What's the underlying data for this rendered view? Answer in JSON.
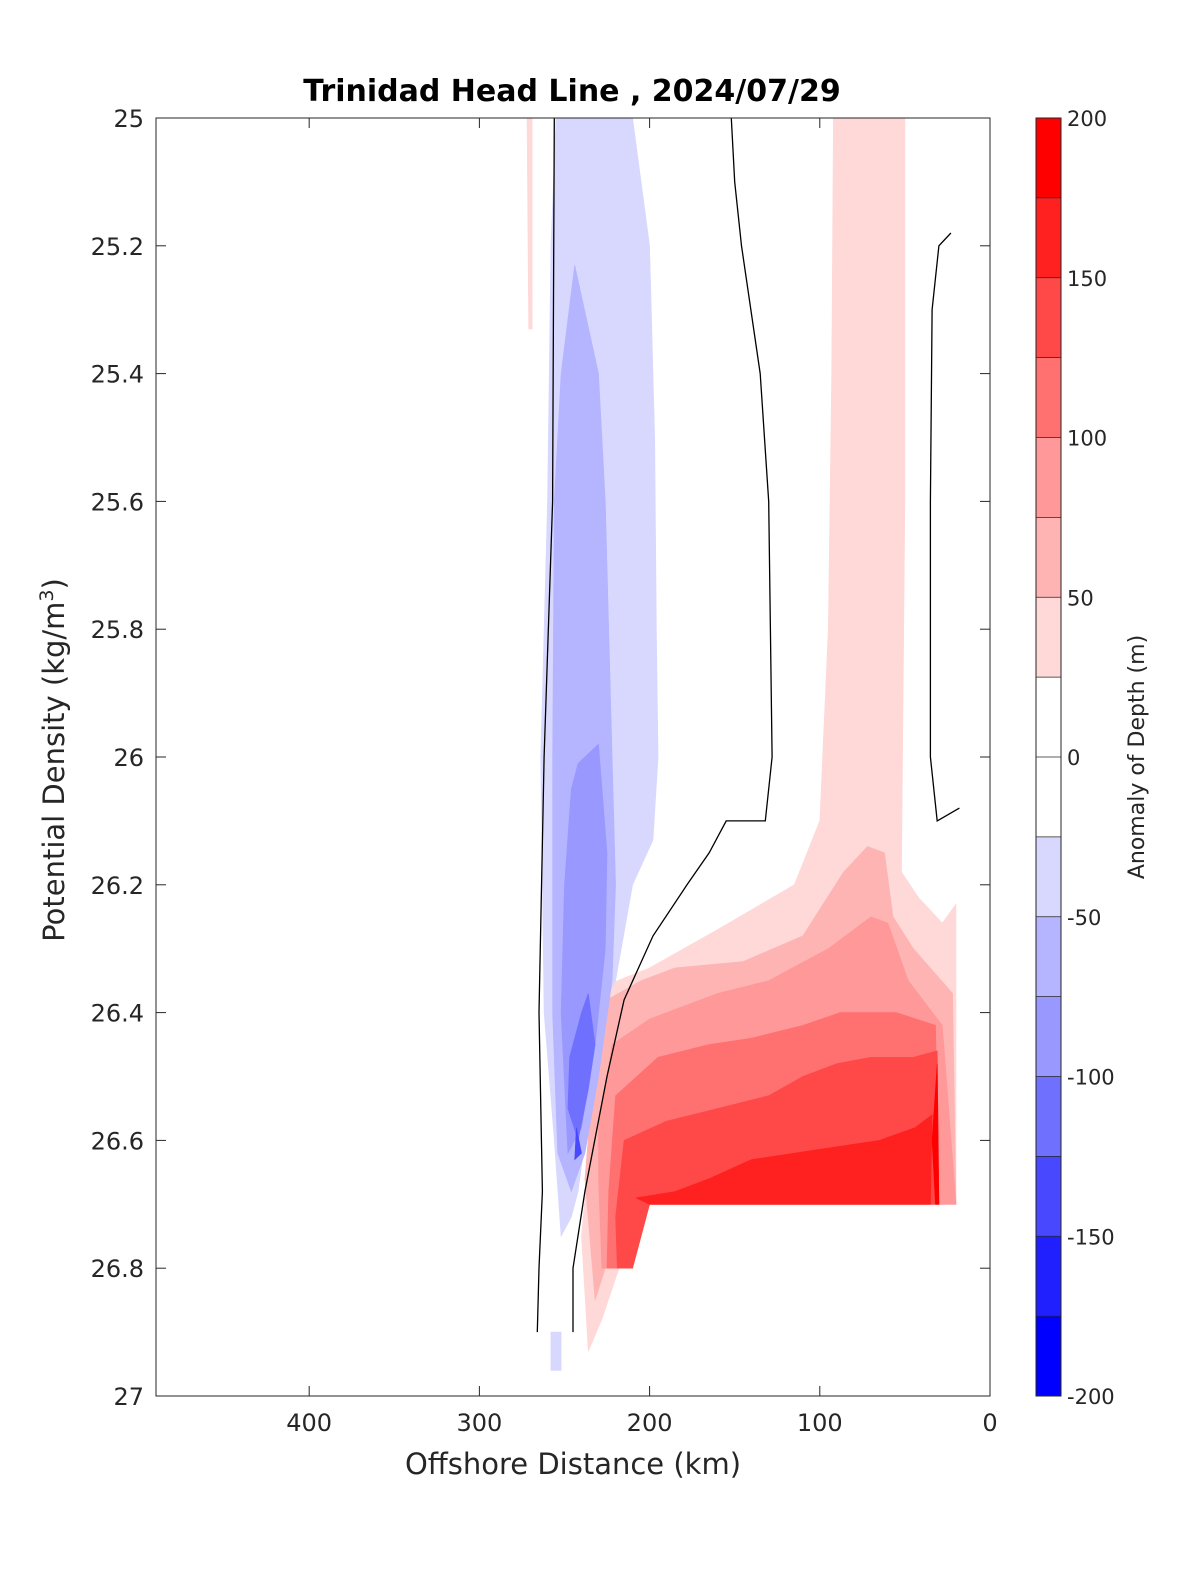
{
  "chart_data": {
    "type": "contour",
    "title": "Trinidad Head Line , 2024/07/29",
    "xlabel": "Offshore Distance (km)",
    "ylabel": "Potential Density (kg/m^3)",
    "ylabel_parts": {
      "base": "Potential Density (kg/m",
      "sup": "3",
      "end": ")"
    },
    "xlim": [
      490,
      0
    ],
    "ylim": [
      25,
      27
    ],
    "y_reversed": true,
    "x_ticks": [
      "400",
      "300",
      "200",
      "100",
      "0"
    ],
    "x_tick_values": [
      400,
      300,
      200,
      100,
      0
    ],
    "y_ticks": [
      "25",
      "25.2",
      "25.4",
      "25.6",
      "25.8",
      "26",
      "26.2",
      "26.4",
      "26.6",
      "26.8",
      "27"
    ],
    "y_tick_values": [
      25,
      25.2,
      25.4,
      25.6,
      25.8,
      26,
      26.2,
      26.4,
      26.6,
      26.8,
      27
    ],
    "colorbar": {
      "label": "Anomaly of Depth (m)",
      "range": [
        -200,
        200
      ],
      "step": 25,
      "tick_labels": [
        "200",
        "150",
        "100",
        "50",
        "0",
        "-50",
        "-100",
        "-150",
        "-200"
      ],
      "tick_values": [
        200,
        150,
        100,
        50,
        0,
        -50,
        -100,
        -150,
        -200
      ],
      "colors_low_to_high": [
        "#0000ff",
        "#2020ff",
        "#4848ff",
        "#7070ff",
        "#9898ff",
        "#b4b4ff",
        "#d8d8ff",
        "#ffffff",
        "#ffffff",
        "#ffd8d8",
        "#ffb4b4",
        "#ff9898",
        "#ff7070",
        "#ff4848",
        "#ff2020",
        "#ff0000"
      ]
    },
    "contour_fills": [
      {
        "level": 25,
        "color": "#ffd8d8",
        "points": [
          [
            272,
            25
          ],
          [
            269,
            25
          ],
          [
            269,
            25.33
          ],
          [
            271,
            25.33
          ]
        ]
      },
      {
        "level": 25,
        "color": "#ffd8d8",
        "points": [
          [
            92,
            25
          ],
          [
            50,
            25
          ],
          [
            50,
            25.6
          ],
          [
            52,
            26.18
          ],
          [
            42,
            26.22
          ],
          [
            28,
            26.26
          ],
          [
            20,
            26.23
          ],
          [
            20,
            26.31
          ],
          [
            20,
            26.6
          ],
          [
            20,
            26.7
          ],
          [
            135,
            26.7
          ],
          [
            210,
            26.7
          ],
          [
            218,
            26.8
          ],
          [
            228,
            26.88
          ],
          [
            236,
            26.93
          ],
          [
            240,
            26.75
          ],
          [
            230,
            26.45
          ],
          [
            228,
            26.36
          ],
          [
            200,
            26.33
          ],
          [
            160,
            26.27
          ],
          [
            115,
            26.2
          ],
          [
            100,
            26.1
          ],
          [
            95,
            25.8
          ],
          [
            93,
            25.4
          ]
        ]
      },
      {
        "level": 50,
        "color": "#ffb4b4",
        "points": [
          [
            225,
            26.38
          ],
          [
            205,
            26.35
          ],
          [
            185,
            26.33
          ],
          [
            145,
            26.32
          ],
          [
            110,
            26.28
          ],
          [
            86,
            26.18
          ],
          [
            72,
            26.14
          ],
          [
            62,
            26.15
          ],
          [
            57,
            26.25
          ],
          [
            45,
            26.3
          ],
          [
            22,
            26.37
          ],
          [
            20,
            26.7
          ],
          [
            135,
            26.7
          ],
          [
            205,
            26.7
          ],
          [
            215,
            26.8
          ],
          [
            226,
            26.8
          ],
          [
            232,
            26.85
          ],
          [
            238,
            26.66
          ],
          [
            233,
            26.5
          ]
        ]
      },
      {
        "level": 75,
        "color": "#ff9898",
        "points": [
          [
            222,
            26.45
          ],
          [
            200,
            26.41
          ],
          [
            160,
            26.37
          ],
          [
            130,
            26.35
          ],
          [
            95,
            26.3
          ],
          [
            70,
            26.25
          ],
          [
            60,
            26.26
          ],
          [
            48,
            26.35
          ],
          [
            28,
            26.42
          ],
          [
            20,
            26.7
          ],
          [
            135,
            26.7
          ],
          [
            205,
            26.7
          ],
          [
            212,
            26.8
          ],
          [
            228,
            26.8
          ],
          [
            230,
            26.66
          ],
          [
            230,
            26.58
          ]
        ]
      },
      {
        "level": 100,
        "color": "#ff7070",
        "points": [
          [
            220,
            26.53
          ],
          [
            195,
            26.47
          ],
          [
            165,
            26.45
          ],
          [
            140,
            26.44
          ],
          [
            110,
            26.42
          ],
          [
            88,
            26.4
          ],
          [
            75,
            26.4
          ],
          [
            55,
            26.4
          ],
          [
            32,
            26.42
          ],
          [
            30,
            26.7
          ],
          [
            135,
            26.7
          ],
          [
            205,
            26.7
          ],
          [
            210,
            26.8
          ],
          [
            225,
            26.8
          ],
          [
            224,
            26.68
          ]
        ]
      },
      {
        "level": 125,
        "color": "#ff4848",
        "points": [
          [
            215,
            26.6
          ],
          [
            190,
            26.57
          ],
          [
            160,
            26.55
          ],
          [
            130,
            26.53
          ],
          [
            110,
            26.5
          ],
          [
            90,
            26.48
          ],
          [
            70,
            26.47
          ],
          [
            45,
            26.47
          ],
          [
            31,
            26.46
          ],
          [
            30,
            26.7
          ],
          [
            135,
            26.7
          ],
          [
            200,
            26.7
          ],
          [
            210,
            26.8
          ],
          [
            219,
            26.8
          ],
          [
            220,
            26.72
          ]
        ]
      },
      {
        "level": 150,
        "color": "#ff2020",
        "points": [
          [
            208,
            26.69
          ],
          [
            185,
            26.68
          ],
          [
            165,
            26.66
          ],
          [
            140,
            26.63
          ],
          [
            115,
            26.62
          ],
          [
            90,
            26.61
          ],
          [
            65,
            26.6
          ],
          [
            44,
            26.58
          ],
          [
            34,
            26.56
          ],
          [
            35,
            26.7
          ],
          [
            135,
            26.7
          ],
          [
            200,
            26.7
          ]
        ]
      },
      {
        "level": 175,
        "color": "#ff0000",
        "points": [
          [
            31,
            26.48
          ],
          [
            30,
            26.7
          ],
          [
            32,
            26.7
          ],
          [
            34,
            26.6
          ]
        ]
      },
      {
        "level": -25,
        "color": "#d8d8ff",
        "points": [
          [
            240,
            25
          ],
          [
            210,
            25
          ],
          [
            200,
            25.2
          ],
          [
            197,
            25.5
          ],
          [
            196,
            25.8
          ],
          [
            195,
            26.0
          ],
          [
            198,
            26.13
          ],
          [
            210,
            26.2
          ],
          [
            220,
            26.35
          ],
          [
            226,
            26.38
          ],
          [
            234,
            26.5
          ],
          [
            238,
            26.6
          ],
          [
            242,
            26.68
          ],
          [
            246,
            26.72
          ],
          [
            252,
            26.75
          ],
          [
            256,
            26.6
          ],
          [
            262,
            26.4
          ],
          [
            264,
            26.0
          ],
          [
            260,
            25.6
          ],
          [
            258,
            25.2
          ],
          [
            255,
            25
          ]
        ]
      },
      {
        "level": -25,
        "color": "#d8d8ff",
        "points": [
          [
            252,
            26.9
          ],
          [
            258,
            26.9
          ],
          [
            258,
            26.96
          ],
          [
            252,
            26.96
          ]
        ]
      },
      {
        "level": -50,
        "color": "#b4b4ff",
        "points": [
          [
            244,
            25.23
          ],
          [
            230,
            25.4
          ],
          [
            226,
            25.6
          ],
          [
            224,
            25.8
          ],
          [
            222,
            26.0
          ],
          [
            220,
            26.2
          ],
          [
            222,
            26.35
          ],
          [
            230,
            26.5
          ],
          [
            238,
            26.62
          ],
          [
            246,
            26.68
          ],
          [
            254,
            26.62
          ],
          [
            257,
            26.4
          ],
          [
            257,
            26.0
          ],
          [
            256,
            25.6
          ],
          [
            252,
            25.4
          ]
        ]
      },
      {
        "level": -75,
        "color": "#9898ff",
        "points": [
          [
            242,
            26.01
          ],
          [
            230,
            25.98
          ],
          [
            225,
            26.15
          ],
          [
            226,
            26.3
          ],
          [
            232,
            26.45
          ],
          [
            240,
            26.58
          ],
          [
            248,
            26.62
          ],
          [
            252,
            26.4
          ],
          [
            250,
            26.2
          ],
          [
            246,
            26.05
          ]
        ]
      },
      {
        "level": -100,
        "color": "#7070ff",
        "points": [
          [
            236,
            26.37
          ],
          [
            232,
            26.45
          ],
          [
            236,
            26.52
          ],
          [
            242,
            26.6
          ],
          [
            248,
            26.55
          ],
          [
            247,
            26.47
          ],
          [
            240,
            26.4
          ]
        ]
      },
      {
        "level": -125,
        "color": "#4848ff",
        "points": [
          [
            243,
            26.58
          ],
          [
            240,
            26.62
          ],
          [
            244,
            26.63
          ]
        ]
      }
    ],
    "zero_contours": [
      [
        [
          256,
          25
        ],
        [
          257,
          25.6
        ],
        [
          262,
          26.0
        ],
        [
          265,
          26.4
        ],
        [
          263,
          26.68
        ],
        [
          265,
          26.8
        ],
        [
          266,
          26.9
        ]
      ],
      [
        [
          152,
          25
        ],
        [
          150,
          25.1
        ],
        [
          146,
          25.2
        ],
        [
          135,
          25.4
        ],
        [
          130,
          25.6
        ],
        [
          129,
          25.8
        ],
        [
          128,
          26.0
        ],
        [
          132,
          26.1
        ],
        [
          155,
          26.1
        ],
        [
          165,
          26.15
        ],
        [
          178,
          26.2
        ],
        [
          198,
          26.28
        ],
        [
          215,
          26.38
        ],
        [
          225,
          26.5
        ],
        [
          238,
          26.68
        ],
        [
          245,
          26.8
        ],
        [
          245,
          26.9
        ]
      ],
      [
        [
          23,
          25.18
        ],
        [
          30,
          25.2
        ],
        [
          34,
          25.3
        ],
        [
          35,
          25.6
        ],
        [
          35,
          25.8
        ],
        [
          35,
          26.0
        ],
        [
          31,
          26.1
        ],
        [
          18,
          26.08
        ]
      ]
    ]
  }
}
